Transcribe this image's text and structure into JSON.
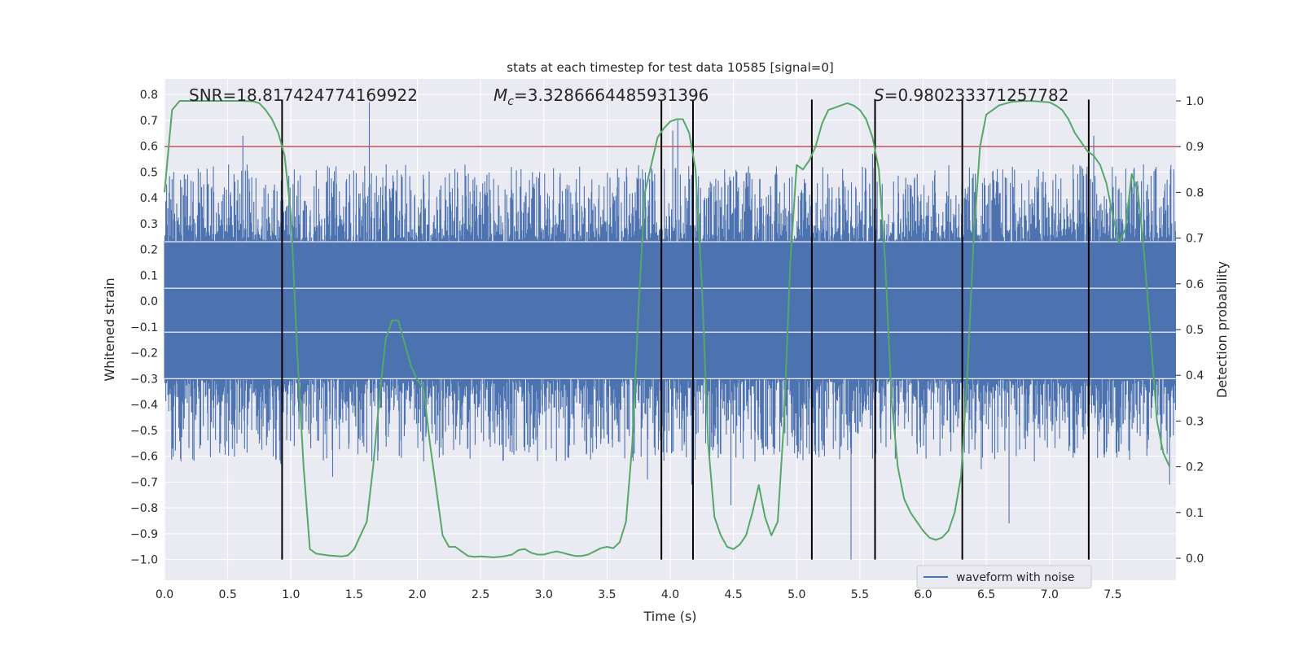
{
  "chart_data": {
    "type": "line",
    "title": "stats at each timestep for test data 10585 [signal=0]",
    "xlabel": "Time (s)",
    "ylabel": "Whitened strain",
    "y2label": "Detection probability",
    "xlim": [
      0,
      8
    ],
    "ylim": [
      -1.08,
      0.86
    ],
    "y2lim": [
      -0.048,
      1.048
    ],
    "x_ticks": [
      0.0,
      0.5,
      1.0,
      1.5,
      2.0,
      2.5,
      3.0,
      3.5,
      4.0,
      4.5,
      5.0,
      5.5,
      6.0,
      6.5,
      7.0,
      7.5
    ],
    "x_tick_labels": [
      "0.0",
      "0.5",
      "1.0",
      "1.5",
      "2.0",
      "2.5",
      "3.0",
      "3.5",
      "4.0",
      "4.5",
      "5.0",
      "5.5",
      "6.0",
      "6.5",
      "7.0",
      "7.5"
    ],
    "y_ticks": [
      0.8,
      0.7,
      0.6,
      0.5,
      0.4,
      0.3,
      0.2,
      0.1,
      0.0,
      -0.1,
      -0.2,
      -0.3,
      -0.4,
      -0.5,
      -0.6,
      -0.7,
      -0.8,
      -0.9,
      -1.0
    ],
    "y_tick_labels": [
      "0.8",
      "0.7",
      "0.6",
      "0.5",
      "0.4",
      "0.3",
      "0.2",
      "0.1",
      "0.0",
      "−0.1",
      "−0.2",
      "−0.3",
      "−0.4",
      "−0.5",
      "−0.6",
      "−0.7",
      "−0.8",
      "−0.9",
      "−1.0"
    ],
    "y2_ticks": [
      1.0,
      0.9,
      0.8,
      0.7,
      0.6,
      0.5,
      0.4,
      0.3,
      0.2,
      0.1,
      0.0
    ],
    "y2_tick_labels": [
      "1.0",
      "0.9",
      "0.8",
      "0.7",
      "0.6",
      "0.5",
      "0.4",
      "0.3",
      "0.2",
      "0.1",
      "0.0"
    ],
    "annotations": {
      "snr": "SNR=18.817424774169922",
      "mc_symbol": "M",
      "mc_sub": "c",
      "mc_value": "=3.3286664485931396",
      "s_symbol": "S",
      "s_value": "=0.980233371257782"
    },
    "legend": {
      "label": "waveform with noise",
      "placement": "lower-right"
    },
    "waveform": {
      "name": "waveform with noise",
      "color": "#4c72b0",
      "core_range": [
        -0.3,
        0.23
      ],
      "peaks": [
        {
          "x": 0.62,
          "y": 0.64
        },
        {
          "x": 1.62,
          "y": 0.77
        },
        {
          "x": 4.06,
          "y": 0.7
        },
        {
          "x": 4.02,
          "y": 0.66
        },
        {
          "x": 7.35,
          "y": 0.64
        },
        {
          "x": 5.6,
          "y": 0.57
        },
        {
          "x": 0.92,
          "y": -0.63
        },
        {
          "x": 0.13,
          "y": -0.62
        },
        {
          "x": 1.33,
          "y": -0.68
        },
        {
          "x": 3.82,
          "y": -0.69
        },
        {
          "x": 4.17,
          "y": -0.71
        },
        {
          "x": 4.48,
          "y": -0.79
        },
        {
          "x": 5.43,
          "y": -1.0
        },
        {
          "x": 6.68,
          "y": -0.86
        },
        {
          "x": 4.67,
          "y": -0.62
        },
        {
          "x": 7.95,
          "y": -0.71
        },
        {
          "x": 2.05,
          "y": -0.62
        },
        {
          "x": 6.46,
          "y": -0.65
        }
      ]
    },
    "detection_probability": {
      "name": "Detection probability",
      "color": "#55a868",
      "x": [
        0.0,
        0.06,
        0.12,
        0.2,
        0.3,
        0.4,
        0.5,
        0.6,
        0.7,
        0.75,
        0.8,
        0.85,
        0.9,
        0.95,
        1.0,
        1.05,
        1.1,
        1.15,
        1.2,
        1.3,
        1.4,
        1.45,
        1.5,
        1.55,
        1.6,
        1.65,
        1.7,
        1.75,
        1.8,
        1.85,
        1.9,
        1.95,
        2.0,
        2.05,
        2.1,
        2.15,
        2.2,
        2.25,
        2.3,
        2.35,
        2.4,
        2.45,
        2.5,
        2.55,
        2.6,
        2.65,
        2.7,
        2.75,
        2.8,
        2.85,
        2.9,
        2.95,
        3.0,
        3.05,
        3.1,
        3.15,
        3.2,
        3.25,
        3.3,
        3.35,
        3.4,
        3.45,
        3.5,
        3.55,
        3.6,
        3.65,
        3.7,
        3.75,
        3.8,
        3.85,
        3.9,
        3.95,
        4.0,
        4.05,
        4.1,
        4.15,
        4.2,
        4.25,
        4.3,
        4.35,
        4.4,
        4.45,
        4.5,
        4.55,
        4.6,
        4.65,
        4.7,
        4.75,
        4.8,
        4.85,
        4.9,
        4.95,
        5.0,
        5.05,
        5.1,
        5.15,
        5.2,
        5.25,
        5.3,
        5.35,
        5.4,
        5.45,
        5.5,
        5.55,
        5.6,
        5.65,
        5.7,
        5.75,
        5.8,
        5.85,
        5.9,
        5.95,
        6.0,
        6.05,
        6.1,
        6.15,
        6.2,
        6.25,
        6.3,
        6.35,
        6.4,
        6.45,
        6.5,
        6.6,
        6.7,
        6.8,
        6.9,
        7.0,
        7.05,
        7.1,
        7.15,
        7.2,
        7.25,
        7.3,
        7.35,
        7.4,
        7.45,
        7.5,
        7.55,
        7.6,
        7.65,
        7.7,
        7.75,
        7.8,
        7.85,
        7.9,
        7.95
      ],
      "y": [
        0.8,
        0.98,
        1.0,
        1.0,
        1.0,
        1.0,
        1.0,
        1.0,
        0.999,
        0.995,
        0.98,
        0.96,
        0.93,
        0.88,
        0.75,
        0.45,
        0.2,
        0.02,
        0.01,
        0.006,
        0.004,
        0.006,
        0.02,
        0.05,
        0.08,
        0.2,
        0.35,
        0.48,
        0.52,
        0.52,
        0.47,
        0.42,
        0.39,
        0.37,
        0.25,
        0.15,
        0.05,
        0.025,
        0.025,
        0.015,
        0.005,
        0.003,
        0.004,
        0.003,
        0.002,
        0.003,
        0.005,
        0.008,
        0.018,
        0.02,
        0.012,
        0.008,
        0.008,
        0.012,
        0.015,
        0.012,
        0.008,
        0.005,
        0.005,
        0.008,
        0.015,
        0.022,
        0.025,
        0.022,
        0.035,
        0.08,
        0.25,
        0.55,
        0.8,
        0.86,
        0.92,
        0.94,
        0.955,
        0.96,
        0.96,
        0.93,
        0.85,
        0.6,
        0.25,
        0.09,
        0.05,
        0.025,
        0.02,
        0.03,
        0.05,
        0.1,
        0.16,
        0.09,
        0.05,
        0.08,
        0.3,
        0.65,
        0.86,
        0.85,
        0.87,
        0.9,
        0.95,
        0.98,
        0.985,
        0.99,
        0.995,
        0.99,
        0.98,
        0.96,
        0.92,
        0.85,
        0.65,
        0.35,
        0.2,
        0.13,
        0.1,
        0.08,
        0.06,
        0.045,
        0.04,
        0.045,
        0.06,
        0.1,
        0.18,
        0.4,
        0.7,
        0.9,
        0.97,
        0.99,
        0.998,
        1.0,
        0.999,
        0.997,
        0.99,
        0.98,
        0.96,
        0.93,
        0.91,
        0.89,
        0.88,
        0.86,
        0.82,
        0.75,
        0.69,
        0.72,
        0.84,
        0.8,
        0.66,
        0.48,
        0.3,
        0.23,
        0.2
      ]
    },
    "threshold": {
      "y2": 0.9,
      "color": "#c44e52"
    },
    "event_lines_x": [
      0.93,
      3.93,
      4.18,
      5.12,
      5.62,
      6.31,
      7.31
    ],
    "event_lines_range": [
      -1.0,
      0.78
    ]
  }
}
